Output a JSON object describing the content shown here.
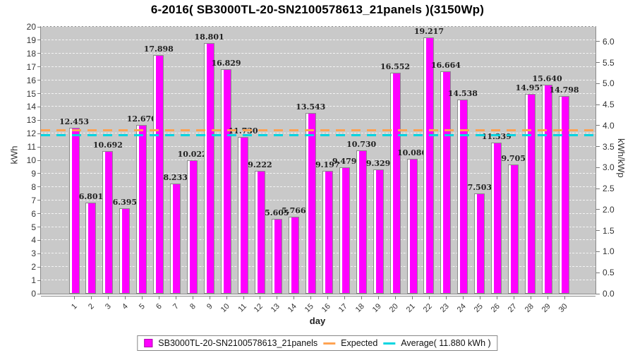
{
  "title": "6-2016( SB3000TL-20-SN2100578613_21panels )(3150Wp)",
  "chart_data": {
    "type": "bar",
    "title": "6-2016( SB3000TL-20-SN2100578613_21panels )(3150Wp)",
    "xlabel": "day",
    "ylabel_left": "kWh",
    "ylabel_right": "kWh/kWp",
    "ylim_left": [
      0,
      20
    ],
    "ylim_right": [
      0,
      6.35
    ],
    "kwp": 3.15,
    "left_tick_step": 1,
    "right_tick_step": 0.5,
    "right_tick_max": 6.0,
    "grid": true,
    "legend_position": "bottom",
    "categories": [
      1,
      2,
      3,
      4,
      5,
      6,
      7,
      8,
      9,
      10,
      11,
      12,
      13,
      14,
      15,
      16,
      17,
      18,
      19,
      20,
      21,
      22,
      23,
      24,
      25,
      26,
      27,
      28,
      29,
      30
    ],
    "series": [
      {
        "name": "SB3000TL-20-SN2100578613_21panels",
        "values": [
          12.453,
          6.801,
          10.692,
          6.395,
          12.67,
          17.898,
          8.233,
          10.022,
          18.801,
          16.829,
          11.73,
          9.222,
          5.605,
          5.766,
          13.543,
          9.197,
          9.479,
          10.73,
          9.329,
          16.552,
          10.086,
          19.217,
          16.664,
          14.538,
          7.503,
          11.339,
          9.705,
          14.957,
          15.64,
          14.798
        ]
      }
    ],
    "expected_value": 12.28,
    "average_value": 11.88
  },
  "legend": {
    "series_label": "SB3000TL-20-SN2100578613_21panels",
    "expected_label": "Expected",
    "average_label": "Average( 11.880 kWh )"
  },
  "colors": {
    "bar_fill": "#ff00ff",
    "bar_highlight": "#ffffff",
    "bar_border": "#8a8a8a",
    "expected_line": "#ffa352",
    "average_line": "#00d5e0",
    "plot_background": "#c9c9c9",
    "grid_line": "#f4f4f4",
    "value_label": "#222222"
  }
}
